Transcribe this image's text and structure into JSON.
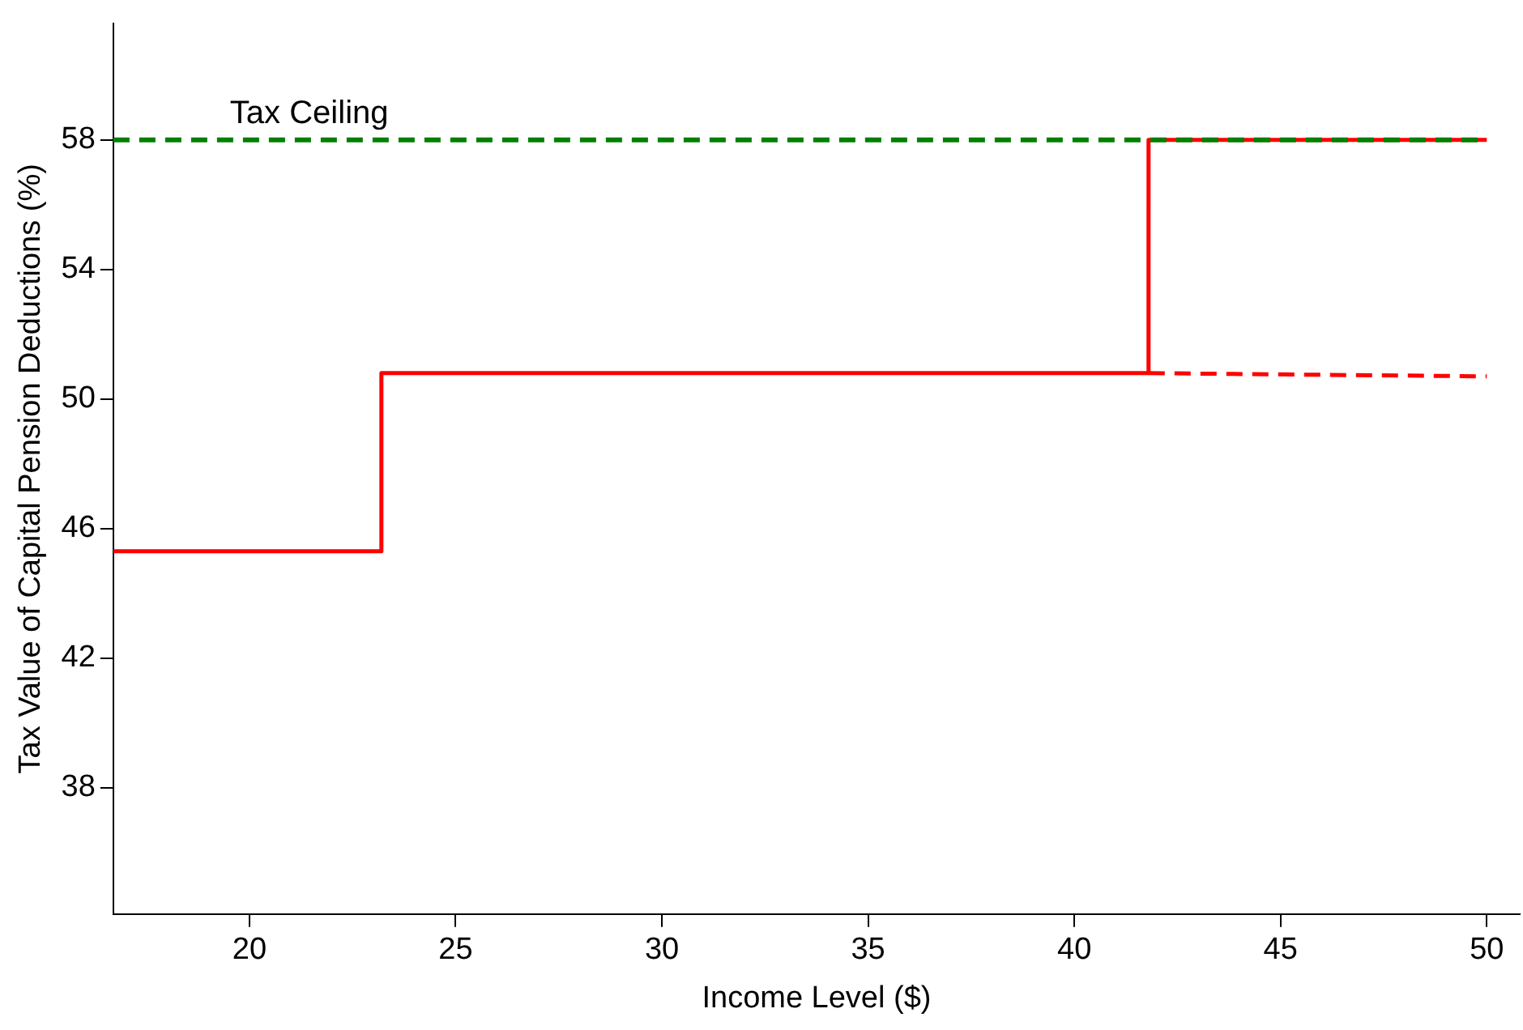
{
  "chart_data": {
    "type": "step",
    "xlabel": "Income Level ($)",
    "ylabel": "Tax Value of Capital Pension Deductions (%)",
    "xlim": [
      16.7,
      50.8
    ],
    "xticks": [
      20,
      25,
      30,
      35,
      40,
      45,
      50
    ],
    "ylim": [
      34.1,
      61.6
    ],
    "yticks": [
      38,
      42,
      46,
      50,
      54,
      58
    ],
    "grid": false,
    "legend": false,
    "series": [
      {
        "color": "#ff0000",
        "x": [
          16.7,
          23.2,
          41.8,
          50
        ],
        "values": [
          45.3,
          50.8,
          58,
          58
        ],
        "line_style": "solid"
      },
      {
        "type": "line",
        "color": "#ff0000",
        "x": [
          41.8,
          50
        ],
        "values": [
          50.8,
          50.7
        ],
        "line_style": "dashed"
      }
    ],
    "ref_lines": [
      {
        "axis": "y",
        "value": 58,
        "label": "Tax Ceiling",
        "color": "#008000",
        "line_style": "dashed"
      }
    ]
  }
}
